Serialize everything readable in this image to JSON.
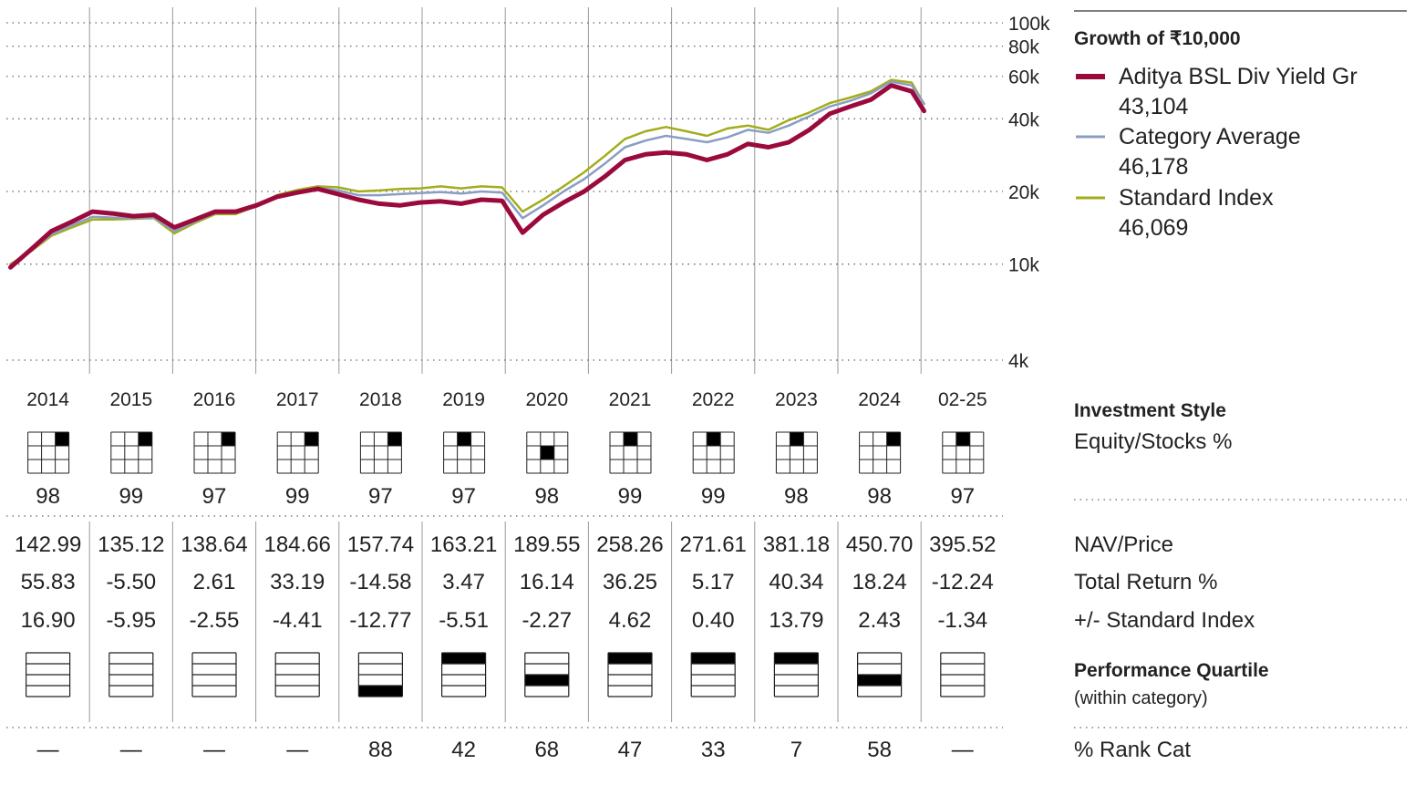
{
  "legend": {
    "title": "Growth of  ₹10,000",
    "items": [
      {
        "label": "Aditya BSL Div Yield Gr",
        "value": "43,104",
        "color": "#9b0a3c"
      },
      {
        "label": "Category Average",
        "value": "46,178",
        "color": "#8a9ec4"
      },
      {
        "label": "Standard Index",
        "value": "46,069",
        "color": "#a3ad1a"
      }
    ]
  },
  "chart_data": {
    "type": "line",
    "title": "Growth of  ₹10,000",
    "xlabel": "",
    "ylabel": "",
    "y_scale": "log",
    "ylim": [
      4000,
      100000
    ],
    "y_ticks": [
      {
        "value": 100000,
        "label": "100k"
      },
      {
        "value": 80000,
        "label": "80k"
      },
      {
        "value": 60000,
        "label": "60k"
      },
      {
        "value": 40000,
        "label": "40k"
      },
      {
        "value": 20000,
        "label": "20k"
      },
      {
        "value": 10000,
        "label": "10k"
      },
      {
        "value": 4000,
        "label": "4k"
      }
    ],
    "grid": true,
    "legend_position": "right",
    "x": [
      2014.0,
      2014.25,
      2014.5,
      2014.75,
      2015.0,
      2015.25,
      2015.5,
      2015.75,
      2016.0,
      2016.25,
      2016.5,
      2016.75,
      2017.0,
      2017.25,
      2017.5,
      2017.75,
      2018.0,
      2018.25,
      2018.5,
      2018.75,
      2019.0,
      2019.25,
      2019.5,
      2019.75,
      2020.0,
      2020.25,
      2020.5,
      2020.75,
      2021.0,
      2021.25,
      2021.5,
      2021.75,
      2022.0,
      2022.25,
      2022.5,
      2022.75,
      2023.0,
      2023.25,
      2023.5,
      2023.75,
      2024.0,
      2024.25,
      2024.5,
      2024.75,
      2025.0,
      2025.15
    ],
    "series": [
      {
        "name": "Aditya BSL Div Yield Gr",
        "color": "#9b0a3c",
        "width": 5,
        "values": [
          9700,
          11500,
          13700,
          15000,
          16500,
          16200,
          15800,
          16000,
          14200,
          15300,
          16500,
          16500,
          17500,
          19000,
          19800,
          20500,
          19500,
          18500,
          17800,
          17500,
          18000,
          18200,
          17800,
          18500,
          18300,
          13500,
          16000,
          18000,
          20000,
          23000,
          27000,
          28500,
          29000,
          28500,
          27000,
          28500,
          31500,
          30500,
          32000,
          36000,
          42000,
          45000,
          48000,
          55000,
          52000,
          43104
        ]
      },
      {
        "name": "Category Average",
        "color": "#8a9ec4",
        "width": 2.5,
        "values": [
          9900,
          11400,
          13300,
          14500,
          15700,
          15600,
          15500,
          15600,
          13700,
          15000,
          16300,
          16300,
          17500,
          19200,
          20000,
          20700,
          20200,
          19300,
          19300,
          19500,
          19700,
          19900,
          19600,
          20000,
          19800,
          15500,
          17500,
          20000,
          22500,
          26000,
          30500,
          32500,
          34000,
          33000,
          32000,
          33500,
          36000,
          35000,
          37500,
          41000,
          45000,
          47500,
          51000,
          57000,
          55000,
          46178
        ]
      },
      {
        "name": "Standard Index",
        "color": "#a3ad1a",
        "width": 2.5,
        "values": [
          10000,
          11300,
          13100,
          14200,
          15300,
          15300,
          15400,
          15500,
          13400,
          14800,
          16100,
          16100,
          17400,
          19300,
          20300,
          21000,
          20800,
          20000,
          20200,
          20500,
          20600,
          21000,
          20600,
          21000,
          20800,
          16500,
          18500,
          21000,
          24000,
          28000,
          33000,
          35500,
          37000,
          35500,
          34000,
          36500,
          37500,
          36000,
          39500,
          42500,
          46500,
          49000,
          52000,
          58000,
          56500,
          46069
        ]
      }
    ]
  },
  "years": [
    "2014",
    "2015",
    "2016",
    "2017",
    "2018",
    "2019",
    "2020",
    "2021",
    "2022",
    "2023",
    "2024",
    "02-25"
  ],
  "style_boxes": [
    {
      "row": 0,
      "col": 2
    },
    {
      "row": 0,
      "col": 2
    },
    {
      "row": 0,
      "col": 2
    },
    {
      "row": 0,
      "col": 2
    },
    {
      "row": 0,
      "col": 2
    },
    {
      "row": 0,
      "col": 1
    },
    {
      "row": 1,
      "col": 1
    },
    {
      "row": 0,
      "col": 1
    },
    {
      "row": 0,
      "col": 1
    },
    {
      "row": 0,
      "col": 1
    },
    {
      "row": 0,
      "col": 2
    },
    {
      "row": 0,
      "col": 1
    }
  ],
  "equity_pct": [
    "98",
    "99",
    "97",
    "99",
    "97",
    "97",
    "98",
    "99",
    "99",
    "98",
    "98",
    "97"
  ],
  "nav": [
    "142.99",
    "135.12",
    "138.64",
    "184.66",
    "157.74",
    "163.21",
    "189.55",
    "258.26",
    "271.61",
    "381.18",
    "450.70",
    "395.52"
  ],
  "total_return": [
    "55.83",
    "-5.50",
    "2.61",
    "33.19",
    "-14.58",
    "3.47",
    "16.14",
    "36.25",
    "5.17",
    "40.34",
    "18.24",
    "-12.24"
  ],
  "vs_index": [
    "16.90",
    "-5.95",
    "-2.55",
    "-4.41",
    "-12.77",
    "-5.51",
    "-2.27",
    "4.62",
    "0.40",
    "13.79",
    "2.43",
    "-1.34"
  ],
  "quartiles": [
    0,
    0,
    0,
    0,
    4,
    1,
    3,
    1,
    1,
    1,
    3,
    0
  ],
  "rank_cat": [
    "—",
    "—",
    "—",
    "—",
    "88",
    "42",
    "68",
    "47",
    "33",
    "7",
    "58",
    "—"
  ],
  "labels": {
    "investment_style": "Investment Style",
    "equity_stocks": "Equity/Stocks %",
    "nav_price": "NAV/Price",
    "total_return": "Total Return %",
    "vs_index": "+/- Standard Index",
    "performance_quartile": "Performance Quartile",
    "within_category": "(within category)",
    "rank_cat": "% Rank Cat"
  }
}
